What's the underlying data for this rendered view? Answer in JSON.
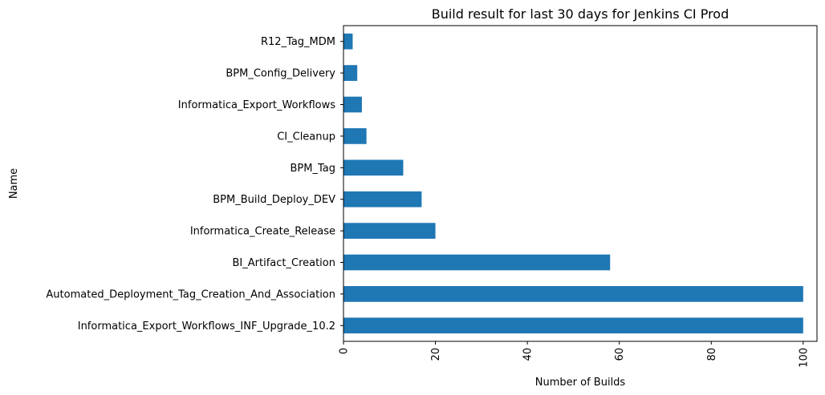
{
  "chart_data": {
    "type": "bar",
    "orientation": "horizontal",
    "title": "Build result for last 30 days for Jenkins CI Prod",
    "xlabel": "Number of Builds",
    "ylabel": "Name",
    "xlim": [
      0,
      103
    ],
    "xticks": [
      0,
      20,
      40,
      60,
      80,
      100
    ],
    "categories": [
      "R12_Tag_MDM",
      "BPM_Config_Delivery",
      "Informatica_Export_Workflows",
      "CI_Cleanup",
      "BPM_Tag",
      "BPM_Build_Deploy_DEV",
      "Informatica_Create_Release",
      "BI_Artifact_Creation",
      "Automated_Deployment_Tag_Creation_And_Association",
      "Informatica_Export_Workflows_INF_Upgrade_10.2"
    ],
    "values": [
      2,
      3,
      4,
      5,
      13,
      17,
      20,
      58,
      100,
      100
    ],
    "bar_color": "#1f77b4",
    "grid": false,
    "legend": "none"
  }
}
